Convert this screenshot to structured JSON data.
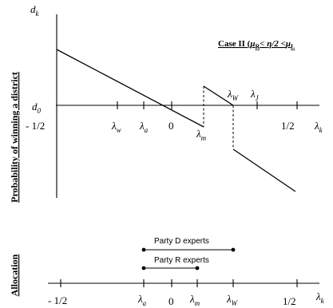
{
  "upper": {
    "ylabel": "Probability of winning a district",
    "y_axis_symbol": {
      "base": "d",
      "sub": "k"
    },
    "x_axis_symbol": {
      "base": "λ",
      "sub": "k"
    },
    "d0_label": {
      "base": "d",
      "sub": "0"
    },
    "case_title": {
      "prefix": "Case II (",
      "mu": "μ",
      "mu_sub": "R",
      "lt": "< ",
      "eta": "η/2 <",
      "mu2": "μ",
      "mu2_sub": "L"
    },
    "tick_labels": {
      "minus_half": "- 1/2",
      "lambda_w": {
        "base": "λ",
        "sub": "w"
      },
      "lambda_a": {
        "base": "λ",
        "sub": "a"
      },
      "zero": "0",
      "lambda_m": {
        "base": "λ",
        "sub": "m"
      },
      "lambda_W": {
        "base": "λ",
        "sub": "W"
      },
      "lambda_J": {
        "base": "λ",
        "sub": "J"
      },
      "half": "1/2"
    }
  },
  "lower": {
    "ylabel": "Allocation",
    "party_d": "Party D experts",
    "party_r": "Party R experts",
    "x_axis_symbol": {
      "base": "λ",
      "sub": "k"
    },
    "tick_labels": {
      "minus_half": "- 1/2",
      "lambda_a": {
        "base": "λ",
        "sub": "a"
      },
      "zero": "0",
      "lambda_m": {
        "base": "λ",
        "sub": "m"
      },
      "lambda_W": {
        "base": "λ",
        "sub": "W"
      },
      "half": "1/2"
    }
  }
}
